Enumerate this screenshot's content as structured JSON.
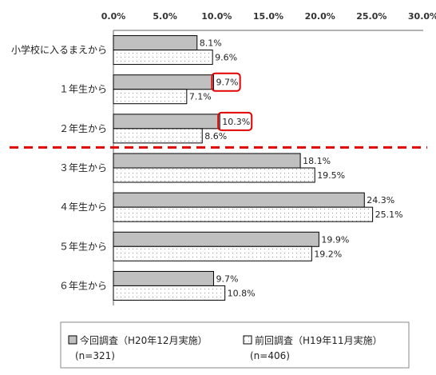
{
  "chart_data": {
    "type": "bar",
    "orientation": "horizontal",
    "categories": [
      "小学校に入るまえから",
      "１年生から",
      "２年生から",
      "３年生から",
      "４年生から",
      "５年生から",
      "６年生から"
    ],
    "series": [
      {
        "name": "今回調査（H20年12月実施）",
        "sub": "(n=321)",
        "color": "#c0c0c0",
        "values": [
          8.1,
          9.7,
          10.3,
          18.1,
          24.3,
          19.9,
          9.7
        ],
        "labels": [
          "8.1%",
          "9.7%",
          "10.3%",
          "18.1%",
          "24.3%",
          "19.9%",
          "9.7%"
        ]
      },
      {
        "name": "前回調査（H19年11月実施）",
        "sub": "(n=406)",
        "color": "#ffffff",
        "values": [
          9.6,
          7.1,
          8.6,
          19.5,
          25.1,
          19.2,
          10.8
        ],
        "labels": [
          "9.6%",
          "7.1%",
          "8.6%",
          "19.5%",
          "25.1%",
          "19.2%",
          "10.8%"
        ]
      }
    ],
    "ticks": [
      "0.0%",
      "5.0%",
      "10.0%",
      "15.0%",
      "20.0%",
      "25.0%",
      "30.0%"
    ],
    "xlim": [
      0,
      30
    ],
    "highlighted": [
      {
        "series": 0,
        "category": 1
      },
      {
        "series": 0,
        "category": 2
      }
    ],
    "highlight_color": "#e00000",
    "divider_after_category": 2,
    "divider_color": "#e00000",
    "legend_position": "bottom"
  }
}
